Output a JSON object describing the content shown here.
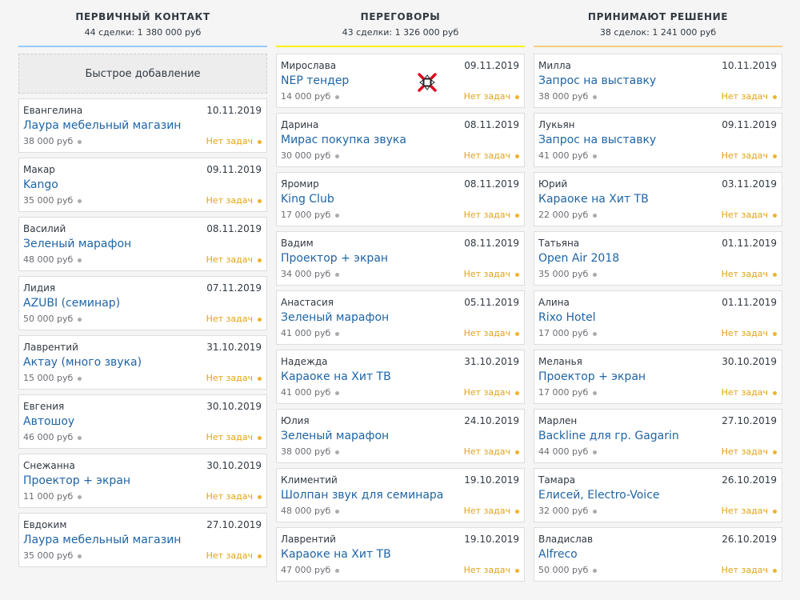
{
  "quick_add_label": "Быстрое добавление",
  "colors": {
    "link": "#1f64a5",
    "no_tasks": "#e3a316",
    "col1_line": "#99ccff",
    "col2_line": "#fff000",
    "col3_line": "#fccd7d",
    "cursor_cross": "#e0001b"
  },
  "cursor_icon": "move-cursor-icon",
  "columns": [
    {
      "title": "Первичный контакт",
      "summary": "44 сделки: 1 380 000 руб",
      "cards": [
        {
          "person": "Евангелина",
          "date": "10.11.2019",
          "deal": "Лаура мебельный магазин",
          "price": "38 000 руб",
          "tasks": "Нет задач"
        },
        {
          "person": "Макар",
          "date": "09.11.2019",
          "deal": "Kango",
          "price": "35 000 руб",
          "tasks": "Нет задач"
        },
        {
          "person": "Василий",
          "date": "08.11.2019",
          "deal": "Зеленый марафон",
          "price": "48 000 руб",
          "tasks": "Нет задач"
        },
        {
          "person": "Лидия",
          "date": "07.11.2019",
          "deal": "AZUBI (семинар)",
          "price": "50 000 руб",
          "tasks": "Нет задач"
        },
        {
          "person": "Лаврентий",
          "date": "31.10.2019",
          "deal": "Актау (много звука)",
          "price": "15 000 руб",
          "tasks": "Нет задач"
        },
        {
          "person": "Евгения",
          "date": "30.10.2019",
          "deal": "Автошоу",
          "price": "46 000 руб",
          "tasks": "Нет задач"
        },
        {
          "person": "Снежанна",
          "date": "30.10.2019",
          "deal": "Проектор + экран",
          "price": "11 000 руб",
          "tasks": "Нет задач"
        },
        {
          "person": "Евдоким",
          "date": "27.10.2019",
          "deal": "Лаура мебельный магазин",
          "price": "35 000 руб",
          "tasks": "Нет задач"
        }
      ]
    },
    {
      "title": "Переговоры",
      "summary": "43 сделки: 1 326 000 руб",
      "cards": [
        {
          "person": "Мирослава",
          "date": "09.11.2019",
          "deal": "NEP тендер",
          "price": "14 000 руб",
          "tasks": "Нет задач"
        },
        {
          "person": "Дарина",
          "date": "08.11.2019",
          "deal": "Мирас покупка звука",
          "price": "30 000 руб",
          "tasks": "Нет задач"
        },
        {
          "person": "Яромир",
          "date": "08.11.2019",
          "deal": "King Club",
          "price": "17 000 руб",
          "tasks": "Нет задач"
        },
        {
          "person": "Вадим",
          "date": "08.11.2019",
          "deal": "Проектор + экран",
          "price": "34 000 руб",
          "tasks": "Нет задач"
        },
        {
          "person": "Анастасия",
          "date": "05.11.2019",
          "deal": "Зеленый марафон",
          "price": "41 000 руб",
          "tasks": "Нет задач"
        },
        {
          "person": "Надежда",
          "date": "31.10.2019",
          "deal": "Караоке на Хит ТВ",
          "price": "41 000 руб",
          "tasks": "Нет задач"
        },
        {
          "person": "Юлия",
          "date": "24.10.2019",
          "deal": "Зеленый марафон",
          "price": "38 000 руб",
          "tasks": "Нет задач"
        },
        {
          "person": "Климентий",
          "date": "19.10.2019",
          "deal": "Шолпан звук для семинара",
          "price": "48 000 руб",
          "tasks": "Нет задач"
        },
        {
          "person": "Лаврентий",
          "date": "19.10.2019",
          "deal": "Караоке на Хит ТВ",
          "price": "47 000 руб",
          "tasks": "Нет задач"
        }
      ]
    },
    {
      "title": "Принимают решение",
      "summary": "38 сделок: 1 241 000 руб",
      "cards": [
        {
          "person": "Милла",
          "date": "10.11.2019",
          "deal": "Запрос на выставку",
          "price": "38 000 руб",
          "tasks": "Нет задач"
        },
        {
          "person": "Лукьян",
          "date": "09.11.2019",
          "deal": "Запрос на выставку",
          "price": "41 000 руб",
          "tasks": "Нет задач"
        },
        {
          "person": "Юрий",
          "date": "03.11.2019",
          "deal": "Караоке на Хит ТВ",
          "price": "22 000 руб",
          "tasks": "Нет задач"
        },
        {
          "person": "Татьяна",
          "date": "01.11.2019",
          "deal": "Open Air 2018",
          "price": "35 000 руб",
          "tasks": "Нет задач"
        },
        {
          "person": "Алина",
          "date": "01.11.2019",
          "deal": "Rixo Hotel",
          "price": "17 000 руб",
          "tasks": "Нет задач"
        },
        {
          "person": "Меланья",
          "date": "30.10.2019",
          "deal": "Проектор + экран",
          "price": "17 000 руб",
          "tasks": "Нет задач"
        },
        {
          "person": "Марлен",
          "date": "27.10.2019",
          "deal": "Backline для гр. Gagarin",
          "price": "44 000 руб",
          "tasks": "Нет задач"
        },
        {
          "person": "Тамара",
          "date": "26.10.2019",
          "deal": "Елисей, Electro-Voice",
          "price": "32 000 руб",
          "tasks": "Нет задач"
        },
        {
          "person": "Владислав",
          "date": "26.10.2019",
          "deal": "Alfreco",
          "price": "50 000 руб",
          "tasks": "Нет задач"
        }
      ]
    }
  ]
}
